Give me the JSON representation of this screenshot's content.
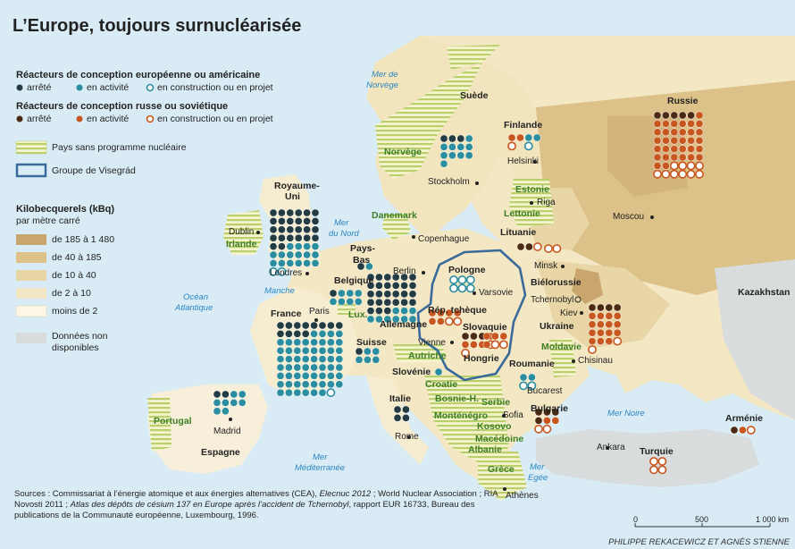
{
  "title": "L’Europe, toujours surnucléarisée",
  "legend": {
    "ew_heading": "Réacteurs de conception européenne ou américaine",
    "ru_heading": "Réacteurs de conception russe ou soviétique",
    "status_stopped": "arrêté",
    "status_active": "en activité",
    "status_construction": "en construction ou en projet",
    "no_program": "Pays sans programme nucléaire",
    "visegrad": "Groupe de Visegrád",
    "kbq_heading_1": "Kilobecquerels (kBq)",
    "kbq_heading_2": "par mètre carré",
    "kbq_classes": [
      "de 185 à 1 480",
      "de 40 à 185",
      "de 10 à 40",
      "de 2 à 10",
      "moins de 2"
    ],
    "no_data_1": "Données non",
    "no_data_2": "disponibles"
  },
  "colors": {
    "ew_stopped": "#233c43",
    "ew_active": "#2a8ea0",
    "ru_stopped": "#4b2a14",
    "ru_active": "#c8571f",
    "kbq": [
      "#c8a66e",
      "#dcc189",
      "#e8d6a6",
      "#f3e8c6",
      "#fbf6e6"
    ],
    "no_data": "#d9dcdc",
    "visegrad": "#3a6a9a",
    "no_program": "#e6ecc0"
  },
  "countries": {
    "suede": "Suède",
    "finlande": "Finlande",
    "norvege": "Norvège",
    "russie": "Russie",
    "royaume_uni_1": "Royaume-",
    "royaume_uni_2": "Uni",
    "irlande": "Irlande",
    "danemark": "Danemark",
    "estonie": "Estonie",
    "lettonie": "Lettonie",
    "lituanie": "Lituanie",
    "pays_bas_1": "Pays-",
    "pays_bas_2": "Bas",
    "belgique": "Belgique",
    "lux": "Lux.",
    "allemagne": "Allemagne",
    "pologne": "Pologne",
    "bielorussie": "Biélorussie",
    "france": "France",
    "rep_tcheque": "Rép. tchèque",
    "slovaquie": "Slovaquie",
    "ukraine": "Ukraine",
    "kazakhstan": "Kazakhstan",
    "suisse": "Suisse",
    "autriche": "Autriche",
    "hongrie": "Hongrie",
    "moldavie": "Moldavie",
    "slovenie": "Slovénie",
    "roumanie": "Roumanie",
    "croatie": "Croatie",
    "bosnie": "Bosnie-H.",
    "serbie": "Serbie",
    "montenegro": "Monténégro",
    "kosovo": "Kosovo",
    "bulgarie": "Bulgarie",
    "macedoine": "Macédoine",
    "albanie": "Albanie",
    "italie": "Italie",
    "portugal": "Portugal",
    "espagne": "Espagne",
    "grece": "Grèce",
    "turquie": "Turquie",
    "armenie": "Arménie"
  },
  "cities": {
    "helsinki": "Helsinki",
    "stockholm": "Stockholm",
    "moscou": "Moscou",
    "dublin": "Dublin",
    "copenhague": "Copenhague",
    "riga": "Riga",
    "londres": "Londres",
    "berlin": "Berlin",
    "minsk": "Minsk",
    "varsovie": "Varsovie",
    "paris": "Paris",
    "tchernobyl": "Tchernobyl",
    "kiev": "Kiev",
    "vienne": "Vienne",
    "chisinau": "Chisinau",
    "bucarest": "Bucarest",
    "sofia": "Sofia",
    "rome": "Rome",
    "madrid": "Madrid",
    "ankara": "Ankara",
    "athenes": "Athènes"
  },
  "seas": {
    "norvege_1": "Mer de",
    "norvege_2": "Norvège",
    "nord_1": "Mer",
    "nord_2": "du Nord",
    "manche": "Manche",
    "ocean_1": "Océan",
    "ocean_2": "Atlantique",
    "noire": "Mer Noire",
    "med_1": "Mer",
    "med_2": "Méditerranée",
    "egee_1": "Mer",
    "egee_2": "Egée"
  },
  "scale": {
    "zero": "0",
    "mid": "500",
    "max": "1 000 km"
  },
  "source_1": "Sources : Commissariat à l’énergie atomique et aux énergies alternatives (CEA), ",
  "source_2": "Elecnuc 2012",
  "source_3": " ; World Nuclear Association ; RIA Novosti 2011 ; ",
  "source_4": "Atlas des dépôts de césium 137 en Europe après l’accident de Tchernobyl",
  "source_5": ", rapport EUR 16733, Bureau des publications de la Communauté européenne, Luxembourg, 1996.",
  "credit": "PHILIPPE REKACEWICZ ET AGNÈS STIENNE",
  "reactors": [
    {
      "country": "Royaume-Uni",
      "design": "ew",
      "stopped": 26,
      "active": 16,
      "construction": 2
    },
    {
      "country": "France",
      "design": "ew",
      "stopped": 12,
      "active": 58,
      "construction": 1
    },
    {
      "country": "Allemagne",
      "design": "ew",
      "stopped": 27,
      "active": 9,
      "construction": 0
    },
    {
      "country": "Suède",
      "design": "ew",
      "stopped": 3,
      "active": 10,
      "construction": 0
    },
    {
      "country": "Finlande",
      "design": "ew",
      "stopped": 0,
      "active": 2,
      "construction": 1
    },
    {
      "country": "Finlande",
      "design": "ru",
      "stopped": 0,
      "active": 2,
      "construction": 1
    },
    {
      "country": "Pays-Bas",
      "design": "ew",
      "stopped": 1,
      "active": 1,
      "construction": 0
    },
    {
      "country": "Belgique",
      "design": "ew",
      "stopped": 1,
      "active": 7,
      "construction": 0
    },
    {
      "country": "Suisse",
      "design": "ew",
      "stopped": 1,
      "active": 5,
      "construction": 0
    },
    {
      "country": "Espagne",
      "design": "ew",
      "stopped": 2,
      "active": 8,
      "construction": 0
    },
    {
      "country": "Italie",
      "design": "ew",
      "stopped": 4,
      "active": 0,
      "construction": 0
    },
    {
      "country": "Slovénie",
      "design": "ew",
      "stopped": 0,
      "active": 1,
      "construction": 0
    },
    {
      "country": "Russie",
      "design": "ru",
      "stopped": 5,
      "active": 33,
      "construction": 10
    },
    {
      "country": "Ukraine",
      "design": "ru",
      "stopped": 4,
      "active": 15,
      "construction": 2
    },
    {
      "country": "Lituanie",
      "design": "ru",
      "stopped": 2,
      "active": 0,
      "construction": 1
    },
    {
      "country": "Biélorussie",
      "design": "ru",
      "stopped": 0,
      "active": 0,
      "construction": 2
    },
    {
      "country": "Pologne",
      "design": "ew",
      "stopped": 0,
      "active": 0,
      "construction": 6
    },
    {
      "country": "Rép. tchèque",
      "design": "ru",
      "stopped": 0,
      "active": 6,
      "construction": 2
    },
    {
      "country": "Slovaquie",
      "design": "ru",
      "stopped": 3,
      "active": 4,
      "construction": 2
    },
    {
      "country": "Hongrie",
      "design": "ru",
      "stopped": 0,
      "active": 4,
      "construction": 2
    },
    {
      "country": "Roumanie",
      "design": "ew",
      "stopped": 0,
      "active": 2,
      "construction": 2
    },
    {
      "country": "Bulgarie",
      "design": "ru",
      "stopped": 4,
      "active": 2,
      "construction": 2
    },
    {
      "country": "Arménie",
      "design": "ru",
      "stopped": 1,
      "active": 1,
      "construction": 1
    },
    {
      "country": "Turquie",
      "design": "ru",
      "stopped": 0,
      "active": 0,
      "construction": 4
    }
  ]
}
